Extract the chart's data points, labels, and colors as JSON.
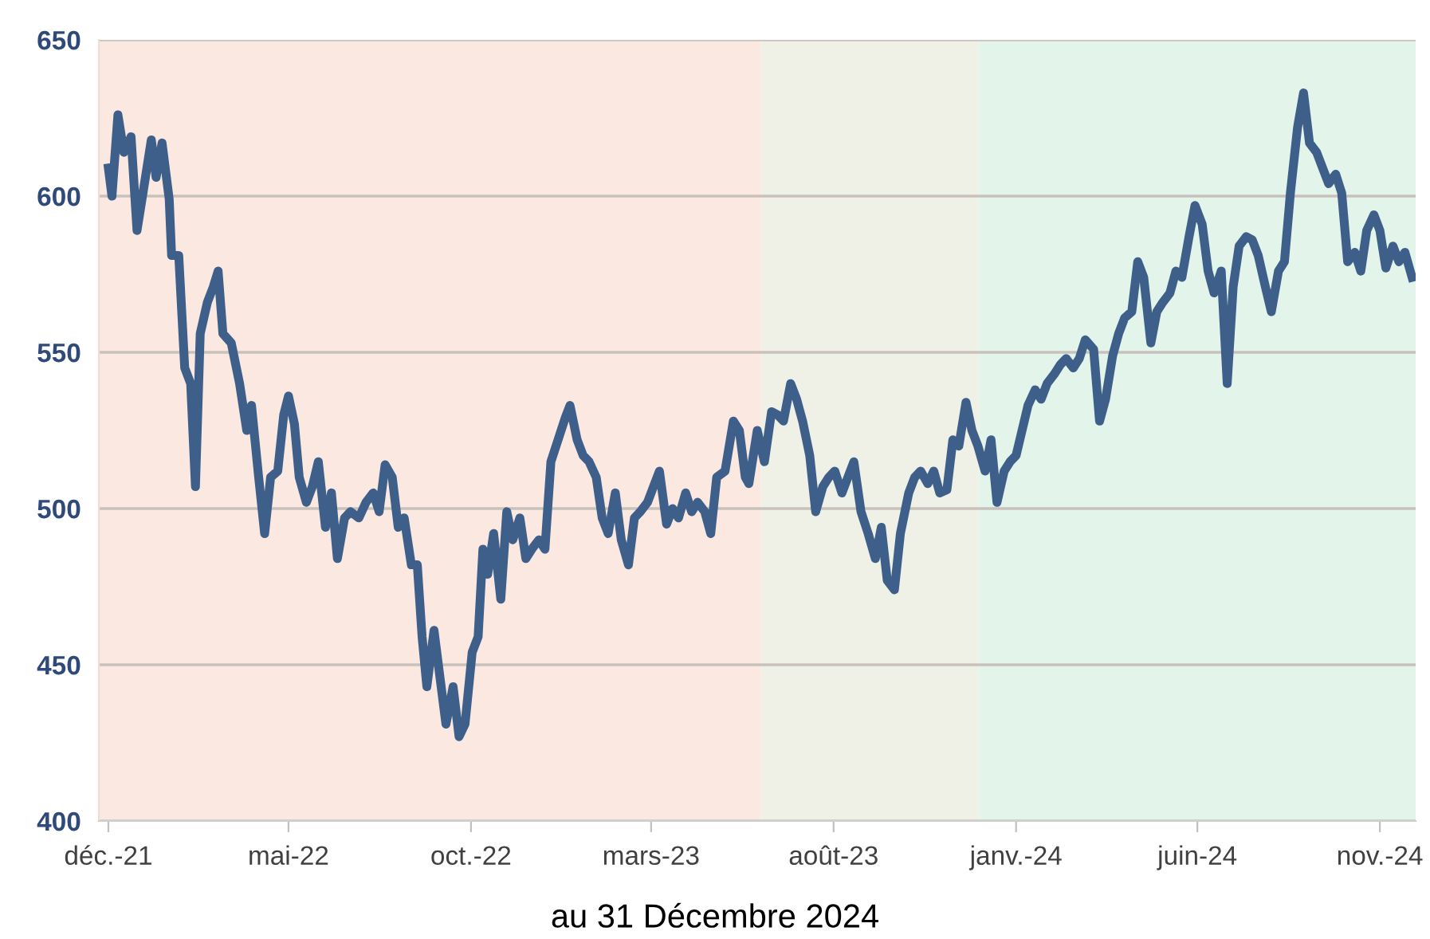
{
  "chart_data": {
    "type": "line",
    "x": [
      "2021-12-01",
      "2021-12-04",
      "2021-12-09",
      "2021-12-14",
      "2021-12-20",
      "2021-12-25",
      "2021-12-30",
      "2022-01-06",
      "2022-01-10",
      "2022-01-15",
      "2022-01-21",
      "2022-01-23",
      "2022-01-29",
      "2022-02-03",
      "2022-02-08",
      "2022-02-12",
      "2022-02-16",
      "2022-02-22",
      "2022-02-27",
      "2022-03-03",
      "2022-03-07",
      "2022-03-14",
      "2022-03-21",
      "2022-03-27",
      "2022-03-31",
      "2022-04-06",
      "2022-04-11",
      "2022-04-16",
      "2022-04-22",
      "2022-04-27",
      "2022-05-01",
      "2022-05-06",
      "2022-05-10",
      "2022-05-16",
      "2022-05-21",
      "2022-05-26",
      "2022-06-01",
      "2022-06-06",
      "2022-06-11",
      "2022-06-17",
      "2022-06-22",
      "2022-06-29",
      "2022-07-05",
      "2022-07-11",
      "2022-07-16",
      "2022-07-21",
      "2022-07-27",
      "2022-08-01",
      "2022-08-06",
      "2022-08-12",
      "2022-08-17",
      "2022-08-21",
      "2022-08-25",
      "2022-08-31",
      "2022-09-05",
      "2022-09-10",
      "2022-09-16",
      "2022-09-21",
      "2022-09-26",
      "2022-10-02",
      "2022-10-07",
      "2022-10-11",
      "2022-10-15",
      "2022-10-20",
      "2022-10-26",
      "2022-10-31",
      "2022-11-05",
      "2022-11-11",
      "2022-11-16",
      "2022-11-21",
      "2022-11-27",
      "2022-12-02",
      "2022-12-07",
      "2022-12-13",
      "2022-12-19",
      "2022-12-23",
      "2022-12-29",
      "2023-01-03",
      "2023-01-08",
      "2023-01-14",
      "2023-01-19",
      "2023-01-24",
      "2023-01-30",
      "2023-02-04",
      "2023-02-10",
      "2023-02-15",
      "2023-02-20",
      "2023-02-26",
      "2023-03-03",
      "2023-03-08",
      "2023-03-14",
      "2023-03-19",
      "2023-03-24",
      "2023-03-30",
      "2023-04-04",
      "2023-04-09",
      "2023-04-15",
      "2023-04-20",
      "2023-04-25",
      "2023-05-02",
      "2023-05-09",
      "2023-05-14",
      "2023-05-19",
      "2023-05-22",
      "2023-05-29",
      "2023-06-04",
      "2023-06-10",
      "2023-06-15",
      "2023-06-20",
      "2023-06-26",
      "2023-07-01",
      "2023-07-06",
      "2023-07-12",
      "2023-07-17",
      "2023-07-23",
      "2023-07-28",
      "2023-08-02",
      "2023-08-08",
      "2023-08-13",
      "2023-08-18",
      "2023-08-24",
      "2023-08-30",
      "2023-09-05",
      "2023-09-10",
      "2023-09-15",
      "2023-09-21",
      "2023-09-26",
      "2023-10-03",
      "2023-10-08",
      "2023-10-13",
      "2023-10-19",
      "2023-10-24",
      "2023-10-29",
      "2023-11-04",
      "2023-11-09",
      "2023-11-14",
      "2023-11-20",
      "2023-11-25",
      "2023-11-30",
      "2023-12-06",
      "2023-12-11",
      "2023-12-16",
      "2023-12-22",
      "2023-12-27",
      "2024-01-01",
      "2024-01-06",
      "2024-01-11",
      "2024-01-17",
      "2024-01-22",
      "2024-01-27",
      "2024-02-02",
      "2024-02-07",
      "2024-02-12",
      "2024-02-18",
      "2024-02-23",
      "2024-02-28",
      "2024-03-06",
      "2024-03-11",
      "2024-03-16",
      "2024-03-22",
      "2024-03-27",
      "2024-04-01",
      "2024-04-07",
      "2024-04-12",
      "2024-04-17",
      "2024-04-23",
      "2024-04-28",
      "2024-05-03",
      "2024-05-09",
      "2024-05-14",
      "2024-05-19",
      "2024-05-25",
      "2024-05-30",
      "2024-06-05",
      "2024-06-10",
      "2024-06-15",
      "2024-06-21",
      "2024-06-26",
      "2024-07-01",
      "2024-07-06",
      "2024-07-12",
      "2024-07-17",
      "2024-07-22",
      "2024-07-28",
      "2024-08-02",
      "2024-08-08",
      "2024-08-13",
      "2024-08-18",
      "2024-08-24",
      "2024-08-29",
      "2024-09-03",
      "2024-09-09",
      "2024-09-14",
      "2024-09-19",
      "2024-09-25",
      "2024-09-30",
      "2024-10-05",
      "2024-10-11",
      "2024-10-16",
      "2024-10-21",
      "2024-10-27",
      "2024-11-01",
      "2024-11-06",
      "2024-11-12",
      "2024-11-17",
      "2024-11-22",
      "2024-11-28"
    ],
    "series": [
      {
        "color": "#3d5f8a",
        "values": [
          609,
          600,
          626,
          614,
          619,
          589,
          601,
          618,
          606,
          617,
          599,
          581,
          581,
          545,
          540,
          507,
          556,
          566,
          571,
          576,
          556,
          553,
          540,
          525,
          533,
          510,
          492,
          510,
          512,
          530,
          536,
          527,
          510,
          502,
          507,
          515,
          494,
          505,
          484,
          497,
          499,
          497,
          502,
          505,
          499,
          514,
          510,
          494,
          497,
          482,
          482,
          459,
          443,
          461,
          446,
          431,
          443,
          427,
          431,
          454,
          459,
          487,
          479,
          492,
          471,
          499,
          490,
          497,
          484,
          487,
          490,
          487,
          515,
          522,
          529,
          533,
          522,
          517,
          515,
          510,
          497,
          492,
          505,
          490,
          482,
          497,
          499,
          502,
          507,
          512,
          495,
          500,
          497,
          505,
          499,
          502,
          499,
          492,
          510,
          512,
          528,
          525,
          510,
          508,
          525,
          515,
          531,
          530,
          528,
          540,
          535,
          528,
          517,
          499,
          507,
          510,
          512,
          505,
          510,
          515,
          499,
          492,
          484,
          494,
          477,
          474,
          492,
          505,
          510,
          512,
          508,
          512,
          505,
          506,
          522,
          520,
          534,
          525,
          520,
          512,
          522,
          502,
          512,
          515,
          517,
          525,
          533,
          538,
          535,
          540,
          543,
          546,
          548,
          545,
          548,
          554,
          551,
          528,
          535,
          549,
          556,
          561,
          563,
          579,
          574,
          553,
          563,
          566,
          569,
          576,
          574,
          587,
          597,
          591,
          576,
          569,
          576,
          540,
          571,
          584,
          587,
          586,
          581,
          571,
          563,
          576,
          579,
          601,
          622,
          633,
          617,
          614,
          609,
          604,
          607,
          601,
          579,
          582,
          576,
          589,
          594,
          589,
          577,
          584,
          579,
          582,
          574
        ]
      }
    ],
    "xlim": [
      "2021-11-23",
      "2024-12-01"
    ],
    "xticks": [
      {
        "value": "2021-12-01",
        "label": "déc.-21"
      },
      {
        "value": "2022-05-01",
        "label": "mai-22"
      },
      {
        "value": "2022-10-01",
        "label": "oct.-22"
      },
      {
        "value": "2023-03-01",
        "label": "mars-23"
      },
      {
        "value": "2023-08-01",
        "label": "août-23"
      },
      {
        "value": "2024-01-01",
        "label": "janv.-24"
      },
      {
        "value": "2024-06-01",
        "label": "juin-24"
      },
      {
        "value": "2024-11-01",
        "label": "nov.-24"
      }
    ],
    "ylim": [
      400,
      650
    ],
    "yticks": [
      400,
      450,
      500,
      550,
      600,
      650
    ],
    "grid": "y",
    "marker": "none",
    "line_style": "solid",
    "bands": [
      {
        "axis": "x",
        "from": "2021-11-23",
        "to": "2023-06-01",
        "color": "#fbe9e1"
      },
      {
        "axis": "x",
        "from": "2023-06-01",
        "to": "2023-12-01",
        "color": "#eff0e6"
      },
      {
        "axis": "x",
        "from": "2023-12-01",
        "to": "2024-12-01",
        "color": "#e3f4ea"
      }
    ],
    "annotations": [
      "au 31 Décembre 2024"
    ]
  }
}
